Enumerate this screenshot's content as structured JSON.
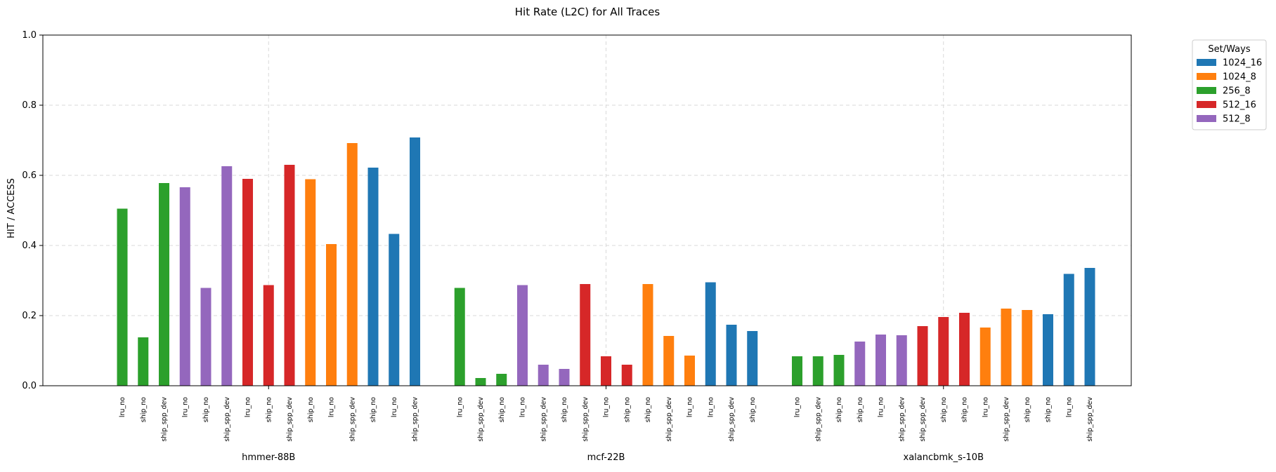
{
  "chart_data": {
    "type": "bar",
    "title": "Hit Rate (L2C) for All Traces",
    "ylabel": "HIT / ACCESS",
    "ylim": [
      0,
      1.0
    ],
    "yticks": [
      "0.0",
      "0.2",
      "0.4",
      "0.6",
      "0.8",
      "1.0"
    ],
    "grid": true,
    "legend": {
      "title": "Set/Ways",
      "placement": "outside-top-right",
      "entries": [
        {
          "name": "1024_16",
          "color": "#1f77b4"
        },
        {
          "name": "1024_8",
          "color": "#ff7f0e"
        },
        {
          "name": "256_8",
          "color": "#2ca02c"
        },
        {
          "name": "512_16",
          "color": "#d62728"
        },
        {
          "name": "512_8",
          "color": "#9467bd"
        }
      ]
    },
    "groups": [
      {
        "name": "hmmer-88B",
        "bars": [
          {
            "label": "lru_no",
            "set": "256_8",
            "value": 0.505
          },
          {
            "label": "ship_no",
            "set": "256_8",
            "value": 0.138
          },
          {
            "label": "ship_spp_dev",
            "set": "256_8",
            "value": 0.578
          },
          {
            "label": "lru_no",
            "set": "512_8",
            "value": 0.566
          },
          {
            "label": "ship_no",
            "set": "512_8",
            "value": 0.279
          },
          {
            "label": "ship_spp_dev",
            "set": "512_8",
            "value": 0.626
          },
          {
            "label": "lru_no",
            "set": "512_16",
            "value": 0.59
          },
          {
            "label": "ship_no",
            "set": "512_16",
            "value": 0.287
          },
          {
            "label": "ship_spp_dev",
            "set": "512_16",
            "value": 0.63
          },
          {
            "label": "ship_no",
            "set": "1024_8",
            "value": 0.589
          },
          {
            "label": "lru_no",
            "set": "1024_8",
            "value": 0.404
          },
          {
            "label": "ship_spp_dev",
            "set": "1024_8",
            "value": 0.692
          },
          {
            "label": "ship_no",
            "set": "1024_16",
            "value": 0.622
          },
          {
            "label": "lru_no",
            "set": "1024_16",
            "value": 0.433
          },
          {
            "label": "ship_spp_dev",
            "set": "1024_16",
            "value": 0.708
          }
        ]
      },
      {
        "name": "mcf-22B",
        "bars": [
          {
            "label": "lru_no",
            "set": "256_8",
            "value": 0.279
          },
          {
            "label": "ship_spp_dev",
            "set": "256_8",
            "value": 0.022
          },
          {
            "label": "ship_no",
            "set": "256_8",
            "value": 0.034
          },
          {
            "label": "lru_no",
            "set": "512_8",
            "value": 0.287
          },
          {
            "label": "ship_spp_dev",
            "set": "512_8",
            "value": 0.06
          },
          {
            "label": "ship_no",
            "set": "512_8",
            "value": 0.048
          },
          {
            "label": "ship_spp_dev",
            "set": "512_16",
            "value": 0.29
          },
          {
            "label": "lru_no",
            "set": "512_16",
            "value": 0.084
          },
          {
            "label": "ship_no",
            "set": "512_16",
            "value": 0.06
          },
          {
            "label": "ship_no",
            "set": "1024_8",
            "value": 0.29
          },
          {
            "label": "ship_spp_dev",
            "set": "1024_8",
            "value": 0.142
          },
          {
            "label": "lru_no",
            "set": "1024_8",
            "value": 0.086
          },
          {
            "label": "lru_no",
            "set": "1024_16",
            "value": 0.295
          },
          {
            "label": "ship_spp_dev",
            "set": "1024_16",
            "value": 0.174
          },
          {
            "label": "ship_no",
            "set": "1024_16",
            "value": 0.156
          }
        ]
      },
      {
        "name": "xalancbmk_s-10B",
        "bars": [
          {
            "label": "lru_no",
            "set": "256_8",
            "value": 0.084
          },
          {
            "label": "ship_spp_dev",
            "set": "256_8",
            "value": 0.084
          },
          {
            "label": "ship_no",
            "set": "256_8",
            "value": 0.088
          },
          {
            "label": "ship_no",
            "set": "512_8",
            "value": 0.126
          },
          {
            "label": "lru_no",
            "set": "512_8",
            "value": 0.146
          },
          {
            "label": "ship_spp_dev",
            "set": "512_8",
            "value": 0.144
          },
          {
            "label": "ship_spp_dev",
            "set": "512_16",
            "value": 0.17
          },
          {
            "label": "ship_no",
            "set": "512_16",
            "value": 0.196
          },
          {
            "label": "ship_no",
            "set": "512_16",
            "value": 0.208
          },
          {
            "label": "lru_no",
            "set": "1024_8",
            "value": 0.166
          },
          {
            "label": "ship_spp_dev",
            "set": "1024_8",
            "value": 0.22
          },
          {
            "label": "ship_no",
            "set": "1024_8",
            "value": 0.216
          },
          {
            "label": "ship_no",
            "set": "1024_16",
            "value": 0.204
          },
          {
            "label": "lru_no",
            "set": "1024_16",
            "value": 0.319
          },
          {
            "label": "ship_spp_dev",
            "set": "1024_16",
            "value": 0.336
          }
        ]
      }
    ]
  }
}
